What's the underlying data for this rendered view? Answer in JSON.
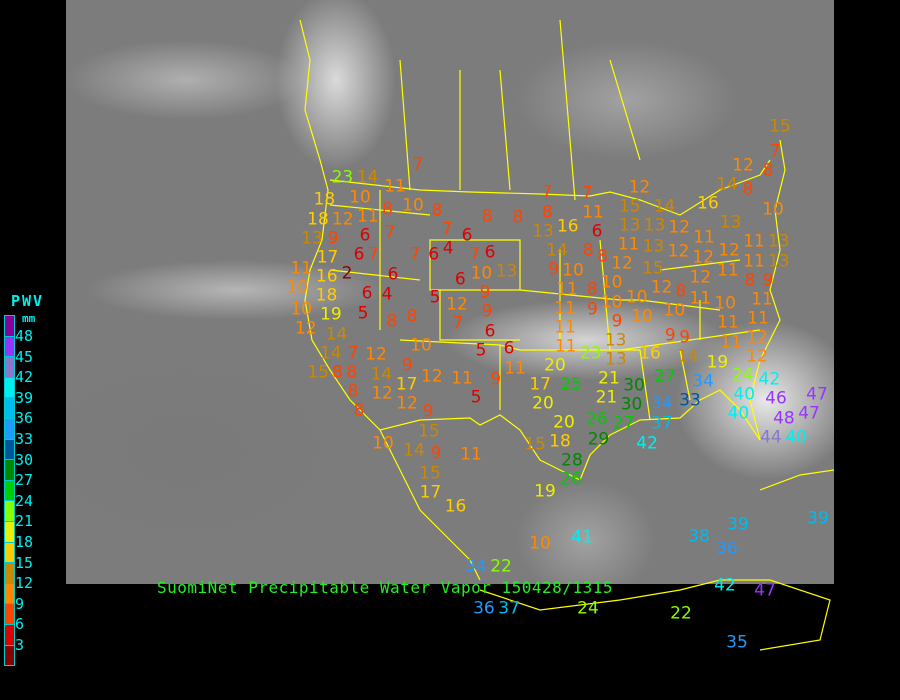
{
  "caption": "SuomiNet Precipitable Water Vapor 150428/1315",
  "legend": {
    "title": "PWV",
    "unit": "mm",
    "labels": [
      "48",
      "45",
      "42",
      "39",
      "36",
      "33",
      "30",
      "27",
      "24",
      "21",
      "18",
      "15",
      "12",
      "9",
      "6",
      "3"
    ],
    "colors_top_to_bottom": [
      "#880099",
      "#9933ff",
      "#8877cc",
      "#00eeee",
      "#00bbee",
      "#2299ff",
      "#005599",
      "#008800",
      "#00cc00",
      "#88ff00",
      "#eeee00",
      "#ffcc00",
      "#cc8800",
      "#ff8800",
      "#ff4400",
      "#dd0000",
      "#880000"
    ]
  },
  "border_color": "#ffff00",
  "stations": [
    23,
    14,
    11,
    7,
    10,
    8,
    10,
    8,
    8,
    8,
    7,
    8,
    16,
    18,
    18,
    12,
    11,
    6,
    7,
    6,
    7,
    13,
    9,
    7,
    4,
    6,
    7,
    6,
    6,
    13,
    14,
    9,
    7,
    6,
    10,
    13,
    9,
    11,
    17,
    2,
    6,
    10,
    16,
    18,
    6,
    4,
    10,
    19,
    5,
    12,
    9,
    5,
    8,
    8,
    7,
    6,
    12,
    14,
    11,
    11,
    15,
    7,
    8,
    12,
    8,
    14,
    16,
    10,
    12,
    15,
    13,
    14,
    13,
    12,
    7,
    11,
    6,
    8,
    8,
    11,
    13,
    12,
    11,
    13,
    12,
    11,
    13,
    12,
    15,
    12,
    11,
    11,
    13,
    12,
    10,
    8,
    10,
    10,
    12,
    8,
    11,
    8,
    9,
    11,
    9,
    10,
    10,
    10,
    11,
    11,
    9,
    10,
    11,
    12,
    11,
    13,
    9,
    14,
    15,
    7,
    8,
    8,
    8,
    8,
    10,
    12,
    14,
    9,
    17,
    12,
    11,
    12,
    12,
    9,
    5,
    6,
    11,
    17,
    9,
    5,
    20,
    23,
    13,
    16,
    14,
    19,
    24,
    11,
    12,
    9,
    21,
    25,
    27,
    21,
    30,
    30,
    20,
    34,
    33,
    40,
    40,
    42,
    46,
    48,
    47,
    47,
    44,
    40,
    34,
    37,
    42,
    20,
    26,
    27,
    29,
    15,
    18,
    28,
    26,
    10,
    14,
    15,
    9,
    11,
    15,
    17,
    16,
    19,
    10,
    41,
    38,
    39,
    36,
    39,
    34,
    22,
    24,
    37,
    22,
    42,
    47,
    35,
    36
  ]
}
